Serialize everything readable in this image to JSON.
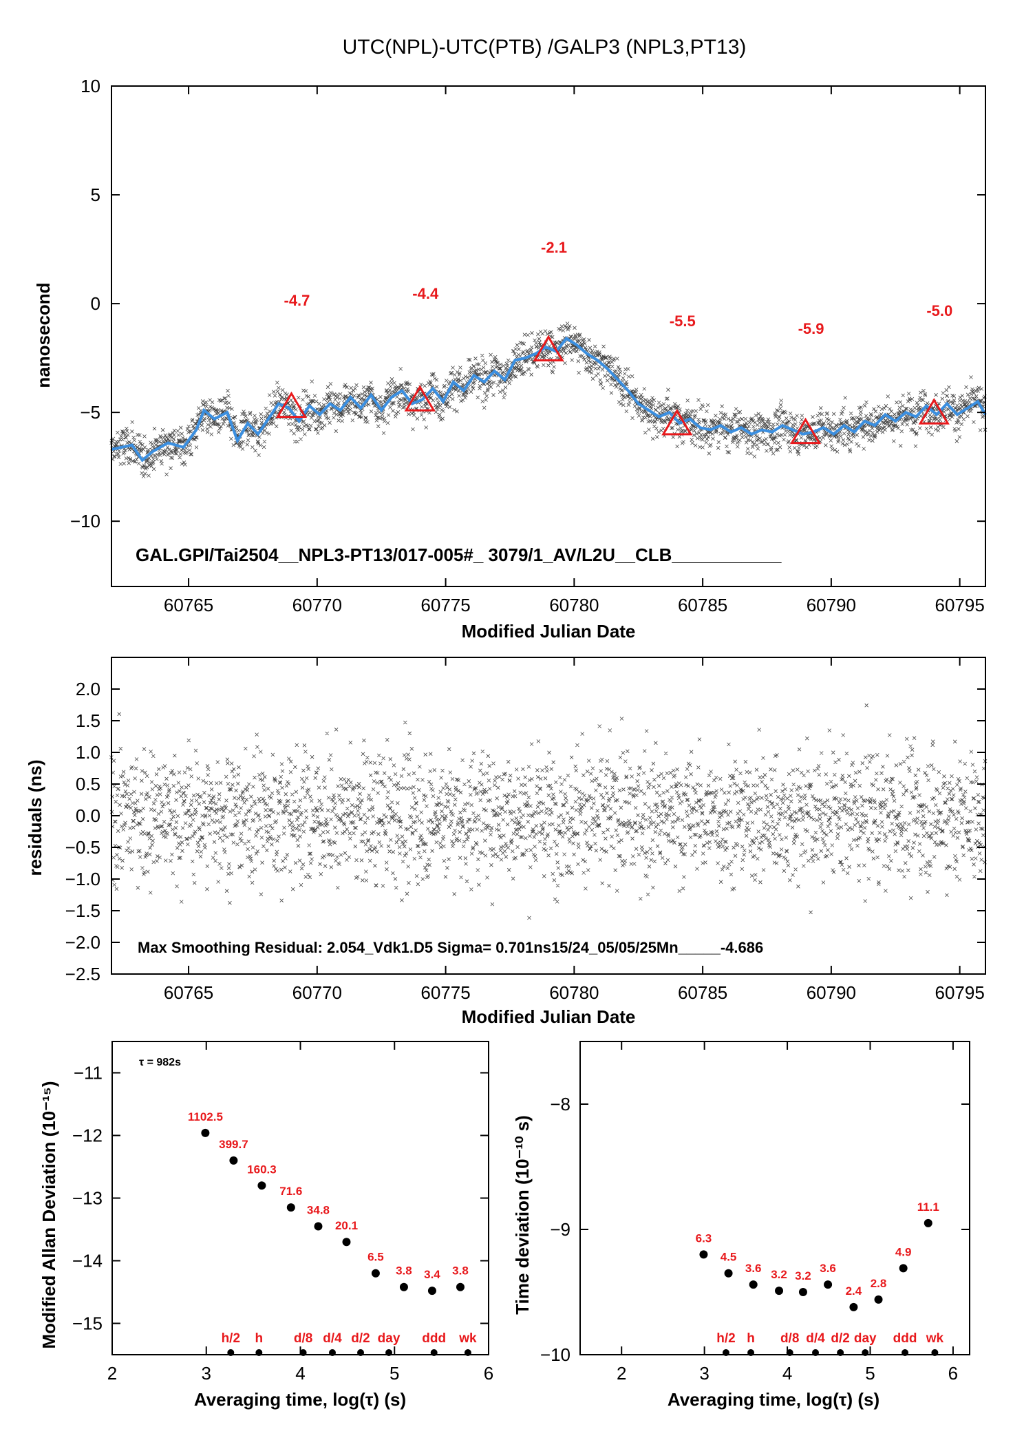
{
  "title": "UTC(NPL)-UTC(PTB)  /GALP3  (NPL3,PT13)",
  "colors": {
    "smooth_line": "#3b8fe0",
    "marker": "#e8191c",
    "label": "#e8191c",
    "points": "#000000"
  },
  "chart_data": [
    {
      "id": "timeseries",
      "type": "scatter",
      "xlabel": "Modified Julian Date",
      "ylabel": "nanosecond",
      "xlim": [
        60762,
        60796
      ],
      "ylim": [
        -13,
        10
      ],
      "xticks": [
        "60765",
        "60770",
        "60775",
        "60780",
        "60785",
        "60790",
        "60795"
      ],
      "yticks": [
        "10",
        "5",
        "0",
        "−10"
      ],
      "ytick_values": [
        10,
        5,
        0,
        -10
      ],
      "yticks_extra": [
        {
          "label": "−5",
          "value": -5
        }
      ],
      "annotation": "GAL.GPI/Tai2504__NPL3-PT13/017-005#_  3079/1_AV/L2U__CLB___________",
      "smoothed_series": {
        "x": [
          60762.0,
          60762.8,
          60763.2,
          60763.6,
          60764.2,
          60764.8,
          60765.3,
          60765.6,
          60766.0,
          60766.5,
          60766.9,
          60767.3,
          60767.7,
          60768.1,
          60768.5,
          60768.9,
          60769.3,
          60769.7,
          60770.1,
          60770.5,
          60770.9,
          60771.3,
          60771.7,
          60772.1,
          60772.5,
          60772.9,
          60773.3,
          60773.7,
          60774.1,
          60774.5,
          60774.9,
          60775.3,
          60775.7,
          60776.1,
          60776.5,
          60776.9,
          60777.3,
          60777.7,
          60778.1,
          60778.5,
          60778.9,
          60779.3,
          60779.7,
          60780.1,
          60780.5,
          60780.9,
          60781.3,
          60781.7,
          60782.1,
          60782.5,
          60782.9,
          60783.3,
          60783.7,
          60784.1,
          60784.5,
          60784.9,
          60785.3,
          60785.7,
          60786.1,
          60786.5,
          60786.9,
          60787.3,
          60787.7,
          60788.1,
          60788.5,
          60788.9,
          60789.3,
          60789.7,
          60790.1,
          60790.5,
          60790.9,
          60791.3,
          60791.7,
          60792.1,
          60792.5,
          60792.9,
          60793.3,
          60793.7,
          60794.1,
          60794.5,
          60794.9,
          60795.3,
          60795.7,
          60796.0
        ],
        "y": [
          -6.7,
          -6.5,
          -7.2,
          -6.8,
          -6.4,
          -6.6,
          -5.8,
          -4.9,
          -5.3,
          -5.0,
          -6.3,
          -5.5,
          -6.0,
          -5.3,
          -4.6,
          -4.8,
          -5.4,
          -4.7,
          -5.1,
          -4.6,
          -4.9,
          -4.3,
          -4.8,
          -4.2,
          -4.9,
          -4.3,
          -4.0,
          -4.6,
          -4.4,
          -3.9,
          -4.5,
          -3.6,
          -4.0,
          -3.3,
          -3.6,
          -3.1,
          -3.5,
          -2.6,
          -2.5,
          -2.3,
          -2.0,
          -2.2,
          -1.6,
          -1.9,
          -2.3,
          -2.6,
          -3.0,
          -3.5,
          -4.0,
          -4.6,
          -4.9,
          -5.2,
          -5.0,
          -5.5,
          -5.3,
          -5.7,
          -5.8,
          -5.6,
          -5.9,
          -5.7,
          -6.0,
          -5.8,
          -5.9,
          -5.6,
          -5.8,
          -6.0,
          -5.9,
          -5.7,
          -6.0,
          -5.6,
          -5.9,
          -5.4,
          -5.6,
          -5.1,
          -5.4,
          -5.0,
          -5.2,
          -4.7,
          -5.1,
          -4.6,
          -5.1,
          -4.8,
          -4.5,
          -5.1
        ]
      },
      "markers": [
        {
          "x": 60769,
          "y": -4.7,
          "label": "-4.7"
        },
        {
          "x": 60774,
          "y": -4.4,
          "label": "-4.4"
        },
        {
          "x": 60779,
          "y": -2.1,
          "label": "-2.1"
        },
        {
          "x": 60784,
          "y": -5.5,
          "label": "-5.5"
        },
        {
          "x": 60789,
          "y": -5.9,
          "label": "-5.9"
        },
        {
          "x": 60794,
          "y": -5.0,
          "label": "-5.0"
        }
      ],
      "scatter_note": "approx. 3000 dense scatter points (x marks) around the smoothed curve, spread about ±1.5 ns"
    },
    {
      "id": "residuals",
      "type": "scatter",
      "xlabel": "Modified Julian Date",
      "ylabel": "residuals (ns)",
      "xlim": [
        60762,
        60796
      ],
      "ylim": [
        -2.5,
        2.5
      ],
      "xticks": [
        "60765",
        "60770",
        "60775",
        "60780",
        "60785",
        "60790",
        "60795"
      ],
      "yticks": [
        "2.0",
        "1.5",
        "1.0",
        "0.5",
        "0.0",
        "−0.5",
        "−1.0",
        "−1.5",
        "−2.0",
        "−2.5"
      ],
      "ytick_values": [
        2.0,
        1.5,
        1.0,
        0.5,
        0.0,
        -0.5,
        -1.0,
        -1.5,
        -2.0,
        -2.5
      ],
      "annotation": "Max Smoothing Residual: 2.054_Vdk1.D5  Sigma= 0.701ns15/24_05/05/25Mn_____-4.686"
    },
    {
      "id": "mdev",
      "type": "scatter",
      "xlabel": "Averaging time, log(τ) (s)",
      "ylabel": "Modified Allan Deviation (10⁻¹⁵)",
      "xlim": [
        2,
        6
      ],
      "ylim": [
        -15.5,
        -10.5
      ],
      "xticks": [
        "2",
        "3",
        "4",
        "5",
        "6"
      ],
      "xtick_values": [
        2,
        3,
        4,
        5,
        6
      ],
      "yticks": [
        "−11",
        "−12",
        "−13",
        "−14",
        "−15"
      ],
      "ytick_values": [
        -11,
        -12,
        -13,
        -14,
        -15
      ],
      "note": "τ = 982s",
      "points": [
        {
          "x": 2.99,
          "y": -11.96,
          "label": "1102.5"
        },
        {
          "x": 3.29,
          "y": -12.4,
          "label": "399.7"
        },
        {
          "x": 3.59,
          "y": -12.8,
          "label": "160.3"
        },
        {
          "x": 3.9,
          "y": -13.15,
          "label": "71.6"
        },
        {
          "x": 4.19,
          "y": -13.45,
          "label": "34.8"
        },
        {
          "x": 4.49,
          "y": -13.7,
          "label": "20.1"
        },
        {
          "x": 4.8,
          "y": -14.2,
          "label": "6.5"
        },
        {
          "x": 5.1,
          "y": -14.42,
          "label": "3.8"
        },
        {
          "x": 5.4,
          "y": -14.48,
          "label": "3.4"
        },
        {
          "x": 5.7,
          "y": -14.42,
          "label": "3.8"
        }
      ],
      "time_marks": [
        {
          "x": 3.26,
          "label": "h/2"
        },
        {
          "x": 3.56,
          "label": "h"
        },
        {
          "x": 4.03,
          "label": "d/8"
        },
        {
          "x": 4.34,
          "label": "d/4"
        },
        {
          "x": 4.64,
          "label": "d/2"
        },
        {
          "x": 4.94,
          "label": "day"
        },
        {
          "x": 5.42,
          "label": "ddd"
        },
        {
          "x": 5.78,
          "label": "wk"
        }
      ]
    },
    {
      "id": "tdev",
      "type": "scatter",
      "xlabel": "Averaging time, log(τ) (s)",
      "ylabel": "Time deviation (10⁻¹⁰ s)",
      "xlim": [
        1.5,
        6.2
      ],
      "ylim": [
        -10,
        -7.5
      ],
      "xticks": [
        "2",
        "3",
        "4",
        "5",
        "6"
      ],
      "xtick_values": [
        2,
        3,
        4,
        5,
        6
      ],
      "yticks": [
        "−8",
        "−9",
        "−10"
      ],
      "ytick_values": [
        -8,
        -9,
        -10
      ],
      "points": [
        {
          "x": 2.99,
          "y": -9.2,
          "label": "6.3"
        },
        {
          "x": 3.29,
          "y": -9.35,
          "label": "4.5"
        },
        {
          "x": 3.59,
          "y": -9.44,
          "label": "3.6"
        },
        {
          "x": 3.9,
          "y": -9.49,
          "label": "3.2"
        },
        {
          "x": 4.19,
          "y": -9.5,
          "label": "3.2"
        },
        {
          "x": 4.49,
          "y": -9.44,
          "label": "3.6"
        },
        {
          "x": 4.8,
          "y": -9.62,
          "label": "2.4"
        },
        {
          "x": 5.1,
          "y": -9.56,
          "label": "2.8"
        },
        {
          "x": 5.4,
          "y": -9.31,
          "label": "4.9"
        },
        {
          "x": 5.7,
          "y": -8.95,
          "label": "11.1"
        }
      ],
      "time_marks": [
        {
          "x": 3.26,
          "label": "h/2"
        },
        {
          "x": 3.56,
          "label": "h"
        },
        {
          "x": 4.03,
          "label": "d/8"
        },
        {
          "x": 4.34,
          "label": "d/4"
        },
        {
          "x": 4.64,
          "label": "d/2"
        },
        {
          "x": 4.94,
          "label": "day"
        },
        {
          "x": 5.42,
          "label": "ddd"
        },
        {
          "x": 5.78,
          "label": "wk"
        }
      ]
    }
  ]
}
